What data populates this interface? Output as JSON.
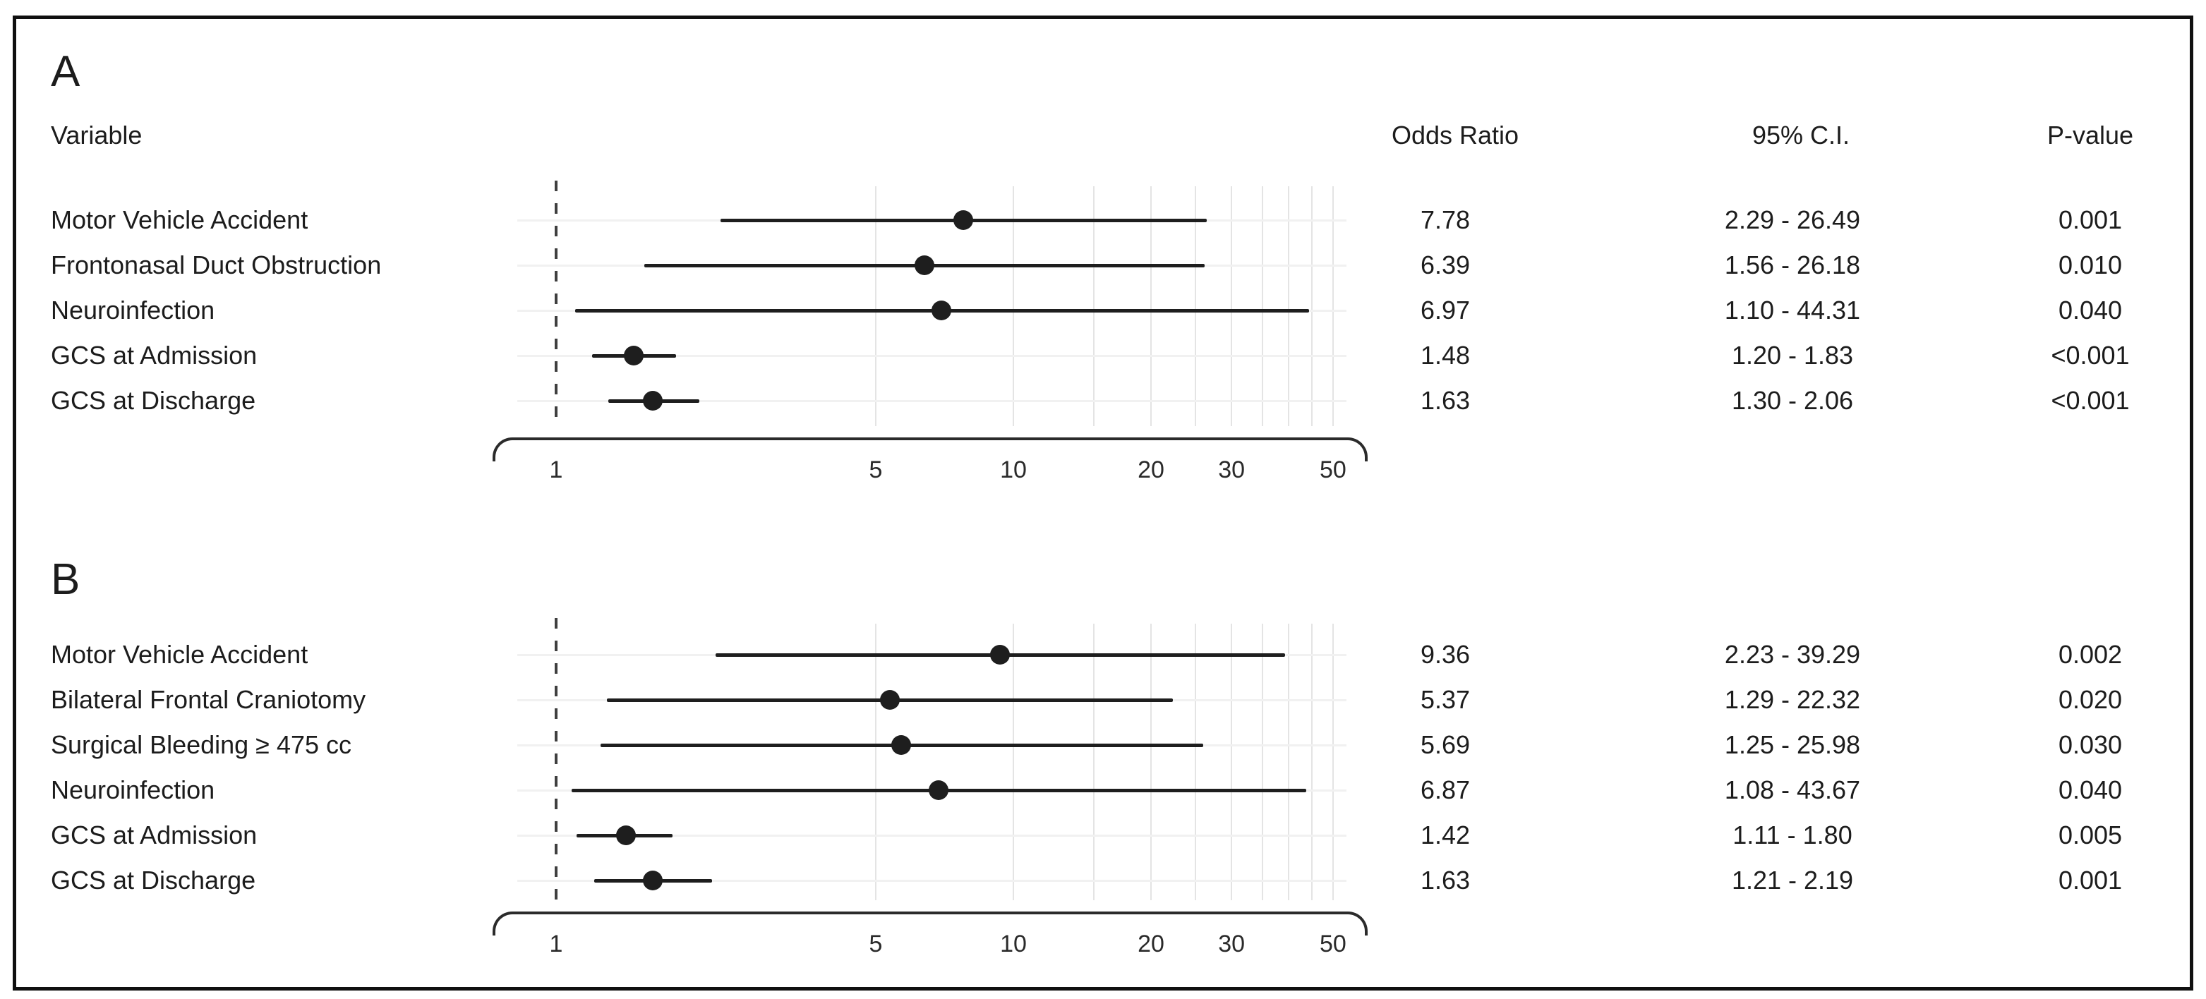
{
  "header": {
    "variable": "Variable",
    "odds_ratio": "Odds Ratio",
    "ci": "95% C.I.",
    "p_value": "P-value"
  },
  "colors": {
    "background": "#ffffff",
    "frame_border": "#101010",
    "text": "#1c1c1c",
    "ink": "#1e1e1e",
    "gridline": "#e4e4e4",
    "row_guide": "#f1f1f1",
    "reference_line": "#3f3f3f",
    "axis": "#2b2b2b"
  },
  "chart_data": [
    {
      "type": "scatter",
      "subtype": "forest-plot",
      "panel_label": "A",
      "x_scale": "log",
      "x_ticks": [
        1,
        5,
        10,
        20,
        30,
        50
      ],
      "x_gridlines": [
        5,
        10,
        15,
        20,
        25,
        30,
        35,
        40,
        45,
        50
      ],
      "reference_line_x": 1,
      "xlim": [
        0.85,
        55
      ],
      "legend": "none",
      "rows": [
        {
          "label": "Motor Vehicle Accident",
          "odds_ratio": 7.78,
          "ci_low": 2.29,
          "ci_high": 26.49,
          "odds_ratio_text": "7.78",
          "ci_text": "2.29 - 26.49",
          "p_text": "0.001"
        },
        {
          "label": "Frontonasal Duct Obstruction",
          "odds_ratio": 6.39,
          "ci_low": 1.56,
          "ci_high": 26.18,
          "odds_ratio_text": "6.39",
          "ci_text": "1.56 - 26.18",
          "p_text": "0.010"
        },
        {
          "label": "Neuroinfection",
          "odds_ratio": 6.97,
          "ci_low": 1.1,
          "ci_high": 44.31,
          "odds_ratio_text": "6.97",
          "ci_text": "1.10 - 44.31",
          "p_text": "0.040"
        },
        {
          "label": "GCS at Admission",
          "odds_ratio": 1.48,
          "ci_low": 1.2,
          "ci_high": 1.83,
          "odds_ratio_text": "1.48",
          "ci_text": "1.20 - 1.83",
          "p_text": "<0.001"
        },
        {
          "label": "GCS at Discharge",
          "odds_ratio": 1.63,
          "ci_low": 1.3,
          "ci_high": 2.06,
          "odds_ratio_text": "1.63",
          "ci_text": "1.30 - 2.06",
          "p_text": "<0.001"
        }
      ]
    },
    {
      "type": "scatter",
      "subtype": "forest-plot",
      "panel_label": "B",
      "x_scale": "log",
      "x_ticks": [
        1,
        5,
        10,
        20,
        30,
        50
      ],
      "x_gridlines": [
        5,
        10,
        15,
        20,
        25,
        30,
        35,
        40,
        45,
        50
      ],
      "reference_line_x": 1,
      "xlim": [
        0.85,
        55
      ],
      "legend": "none",
      "rows": [
        {
          "label": "Motor Vehicle Accident",
          "odds_ratio": 9.36,
          "ci_low": 2.23,
          "ci_high": 39.29,
          "odds_ratio_text": "9.36",
          "ci_text": "2.23 - 39.29",
          "p_text": "0.002"
        },
        {
          "label": "Bilateral Frontal Craniotomy",
          "odds_ratio": 5.37,
          "ci_low": 1.29,
          "ci_high": 22.32,
          "odds_ratio_text": "5.37",
          "ci_text": "1.29 - 22.32",
          "p_text": "0.020"
        },
        {
          "label": "Surgical Bleeding ≥ 475 cc",
          "odds_ratio": 5.69,
          "ci_low": 1.25,
          "ci_high": 25.98,
          "odds_ratio_text": "5.69",
          "ci_text": "1.25 - 25.98",
          "p_text": "0.030"
        },
        {
          "label": "Neuroinfection",
          "odds_ratio": 6.87,
          "ci_low": 1.08,
          "ci_high": 43.67,
          "odds_ratio_text": "6.87",
          "ci_text": "1.08 - 43.67",
          "p_text": "0.040"
        },
        {
          "label": "GCS at Admission",
          "odds_ratio": 1.42,
          "ci_low": 1.11,
          "ci_high": 1.8,
          "odds_ratio_text": "1.42",
          "ci_text": "1.11 - 1.80",
          "p_text": "0.005"
        },
        {
          "label": "GCS at Discharge",
          "odds_ratio": 1.63,
          "ci_low": 1.21,
          "ci_high": 2.19,
          "odds_ratio_text": "1.63",
          "ci_text": "1.21 - 2.19",
          "p_text": "0.001"
        }
      ]
    }
  ]
}
